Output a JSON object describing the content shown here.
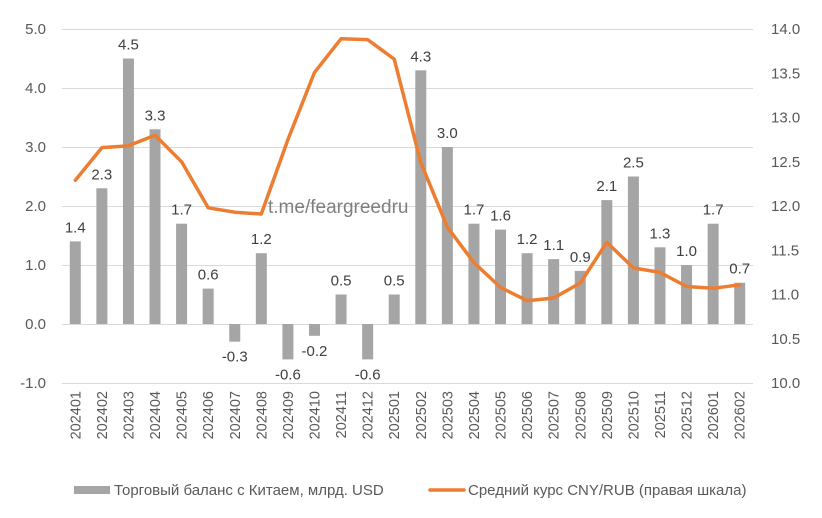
{
  "chart_data": {
    "type": "bar+line",
    "title": "",
    "xlabel": "",
    "ylabel": "",
    "categories": [
      "202401",
      "202402",
      "202403",
      "202404",
      "202405",
      "202406",
      "202407",
      "202408",
      "202409",
      "202410",
      "202411",
      "202412",
      "202501",
      "202502",
      "202503",
      "202504",
      "202505",
      "202506",
      "202507",
      "202508",
      "202509",
      "202510",
      "202511",
      "202512",
      "202601",
      "202602"
    ],
    "series": [
      {
        "name": "Торговый баланс с Китаем, млрд. USD",
        "type": "bar",
        "axis": "left",
        "color": "#a5a5a5",
        "values": [
          1.4,
          2.3,
          4.5,
          3.3,
          1.7,
          0.6,
          -0.3,
          1.2,
          -0.6,
          -0.2,
          0.5,
          -0.6,
          0.5,
          4.3,
          3.0,
          1.7,
          1.6,
          1.2,
          1.1,
          0.9,
          2.1,
          2.5,
          1.3,
          1.0,
          1.7,
          0.7
        ],
        "data_labels": [
          "1.4",
          "2.3",
          "4.5",
          "3.3",
          "1.7",
          "0.6",
          "-0.3",
          "1.2",
          "-0.6",
          "-0.2",
          "0.5",
          "-0.6",
          "0.5",
          "4.3",
          "3.0",
          "1.7",
          "1.6",
          "1.2",
          "1.1",
          "0.9",
          "2.1",
          "2.5",
          "1.3",
          "1.0",
          "1.7",
          "0.7"
        ]
      },
      {
        "name": "Средний курс CNY/RUB (правая шкала)",
        "type": "line",
        "axis": "right",
        "color": "#ed7d31",
        "values": [
          12.29,
          12.66,
          12.68,
          12.8,
          12.5,
          11.98,
          11.93,
          11.91,
          12.75,
          13.51,
          13.89,
          13.88,
          13.66,
          12.49,
          11.76,
          11.36,
          11.08,
          10.93,
          10.96,
          11.13,
          11.59,
          11.3,
          11.25,
          11.09,
          11.07,
          11.11
        ]
      }
    ],
    "y_left": {
      "range": [
        -1.0,
        5.0
      ],
      "ticks": [
        -1.0,
        0.0,
        1.0,
        2.0,
        3.0,
        4.0,
        5.0
      ],
      "tick_labels": [
        "-1.0",
        "0.0",
        "1.0",
        "2.0",
        "3.0",
        "4.0",
        "5.0"
      ]
    },
    "y_right": {
      "range": [
        10.0,
        14.0
      ],
      "ticks": [
        10.0,
        10.5,
        11.0,
        11.5,
        12.0,
        12.5,
        13.0,
        13.5,
        14.0
      ],
      "tick_labels": [
        "10.0",
        "10.5",
        "11.0",
        "11.5",
        "12.0",
        "12.5",
        "13.0",
        "13.5",
        "14.0"
      ]
    },
    "grid": true,
    "legend": {
      "position": "bottom",
      "entries": [
        "Торговый баланс с Китаем, млрд. USD",
        "Средний курс CNY/RUB (правая шкала)"
      ]
    },
    "annotations": [
      {
        "text": "t.me/feargreedru",
        "kind": "watermark"
      }
    ]
  }
}
